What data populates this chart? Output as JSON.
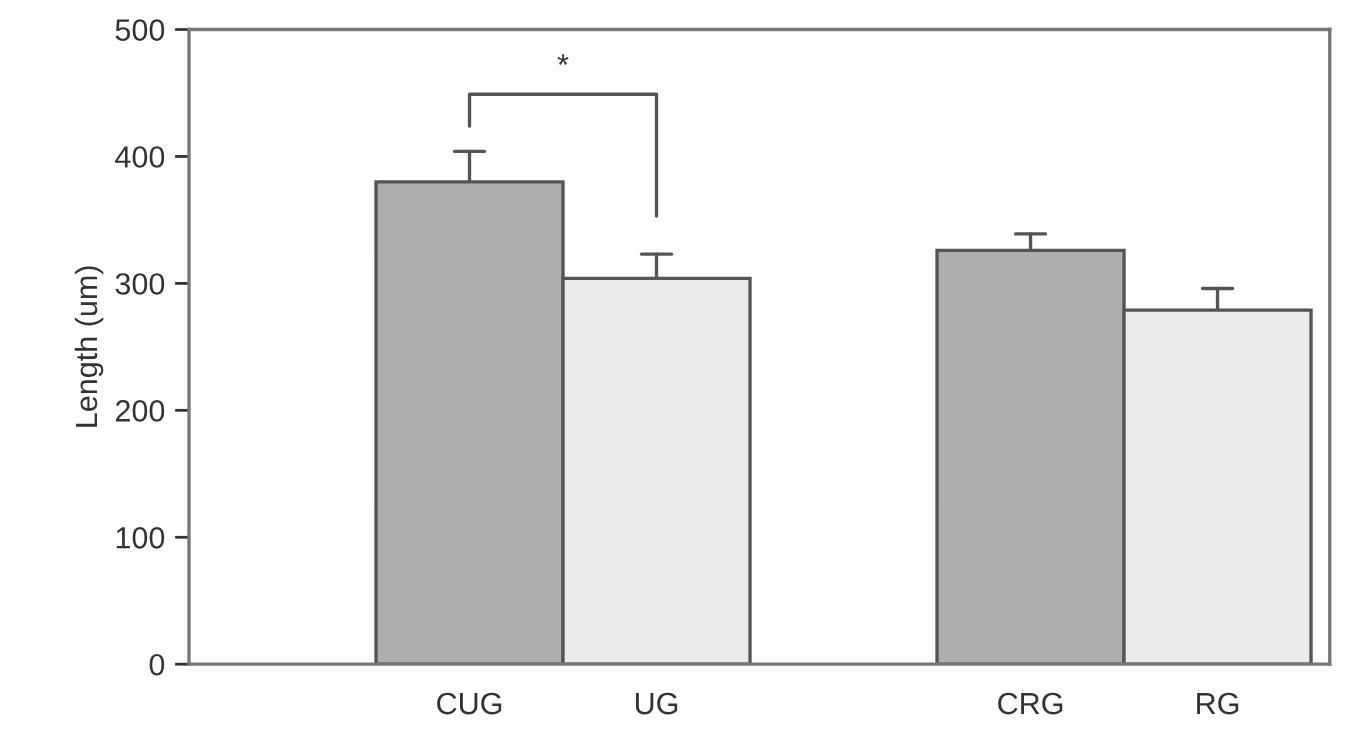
{
  "chart_data": {
    "type": "bar",
    "ylabel": "Length (um)",
    "categories": [
      "CUG",
      "UG",
      null,
      "CRG",
      "RG"
    ],
    "values": [
      380,
      304,
      null,
      326,
      279
    ],
    "colors": [
      "#adaeb0",
      "#ebebeb",
      null,
      "#adaeb0",
      "#ebebeb"
    ],
    "errors": [
      [
        380,
        404
      ],
      [
        304,
        323
      ],
      null,
      [
        326,
        339
      ],
      [
        279,
        296
      ]
    ],
    "ylim": [
      0,
      500
    ],
    "yticks": [
      0,
      100,
      200,
      300,
      400,
      500
    ],
    "annotations": [
      "*"
    ],
    "grid": false,
    "legend": false
  }
}
